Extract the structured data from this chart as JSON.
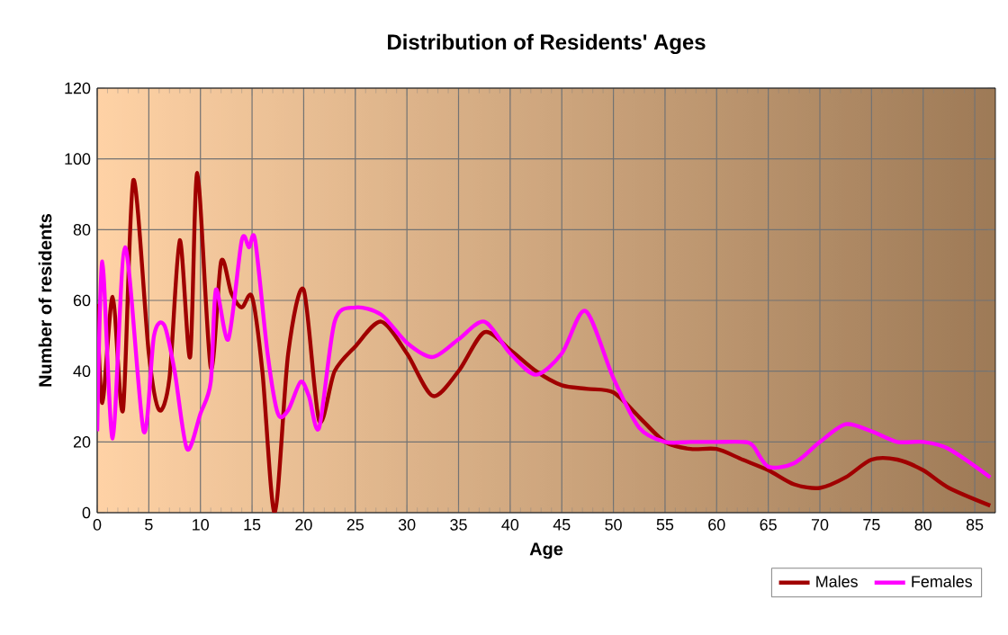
{
  "chart_data": {
    "type": "line",
    "title": "Distribution of Residents' Ages",
    "xlabel": "Age",
    "ylabel": "Number of residents",
    "xlim": [
      0,
      87
    ],
    "ylim": [
      0,
      120
    ],
    "xticks": [
      0,
      5,
      10,
      15,
      20,
      25,
      30,
      35,
      40,
      45,
      50,
      55,
      60,
      65,
      70,
      75,
      80,
      85
    ],
    "yticks": [
      0,
      20,
      40,
      60,
      80,
      100,
      120
    ],
    "grid": true,
    "legend": "bottom right",
    "marker": "none",
    "line_style": "solid",
    "series": [
      {
        "name": "Males",
        "color": "#a00000",
        "x": [
          0,
          0.5,
          1.5,
          2.5,
          3.5,
          5,
          6,
          7,
          8,
          9,
          9.7,
          11,
          12,
          13,
          14,
          15,
          16,
          17.2,
          18.5,
          20,
          21.5,
          23,
          25,
          27.5,
          30,
          32.5,
          35,
          37.5,
          40,
          42.5,
          45,
          47.5,
          50,
          52.5,
          55,
          57.5,
          60,
          62.5,
          65,
          67.5,
          70,
          72.5,
          75,
          77.5,
          80,
          82.5,
          86.5
        ],
        "values": [
          59,
          31,
          61,
          29,
          94,
          45,
          29,
          38,
          77,
          44,
          96,
          41,
          71,
          62,
          58,
          61,
          40,
          0,
          45,
          63,
          26,
          40,
          47,
          54,
          45,
          33,
          40,
          51,
          46,
          40,
          36,
          35,
          34,
          27,
          20,
          18,
          18,
          15,
          12,
          8,
          7,
          10,
          15,
          15,
          12,
          7,
          2
        ]
      },
      {
        "name": "Females",
        "color": "#ff00ff",
        "x": [
          0,
          0.5,
          1.5,
          2.7,
          4.5,
          5.5,
          6.5,
          7.5,
          8.7,
          10,
          11,
          11.5,
          12.7,
          14,
          14.7,
          15.3,
          16.5,
          17.5,
          18.5,
          19.7,
          20.5,
          21.5,
          23,
          25,
          27.5,
          30,
          32.5,
          35,
          37.5,
          40,
          42.5,
          45,
          47.3,
          50,
          52.5,
          55,
          57.5,
          60,
          62.5,
          63.5,
          65,
          67.5,
          70,
          72.5,
          75,
          77.5,
          80,
          82.5,
          86.5
        ],
        "values": [
          23,
          71,
          21,
          75,
          23,
          50,
          53,
          40,
          18,
          28,
          37,
          63,
          49,
          77,
          75,
          77,
          45,
          28,
          29,
          37,
          33,
          24,
          54,
          58,
          56,
          48,
          44,
          49,
          54,
          45,
          39,
          45,
          57,
          38,
          24,
          20,
          20,
          20,
          20,
          19,
          13,
          14,
          20,
          25,
          23,
          20,
          20,
          18,
          10
        ]
      }
    ]
  }
}
